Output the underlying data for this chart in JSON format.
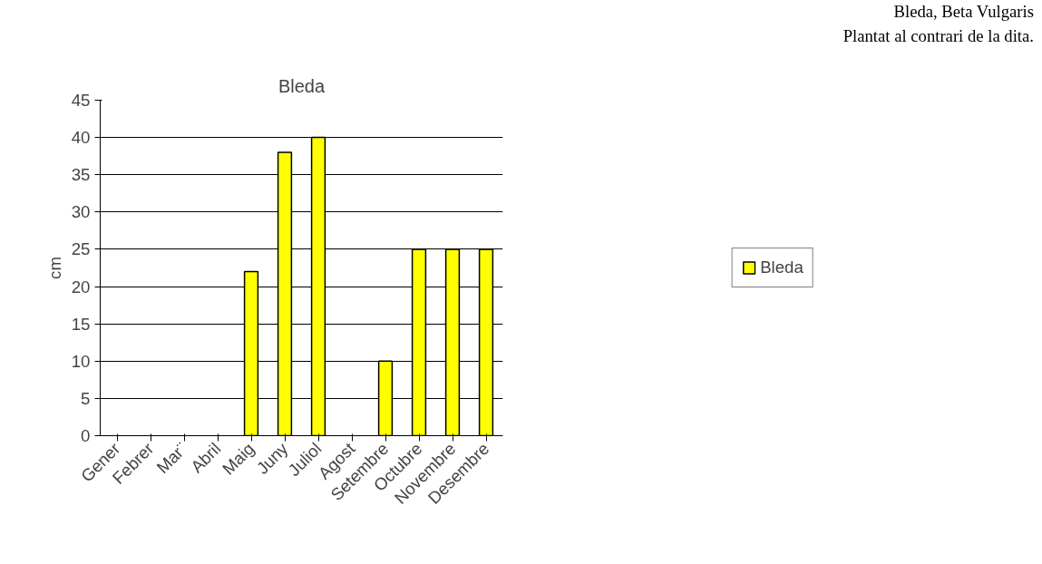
{
  "chart_data": {
    "type": "bar",
    "title": "Bleda",
    "ylabel": "cm",
    "categories": [
      "Gener",
      "Febrer",
      "Mar¨",
      "Abril",
      "Maig",
      "Juny",
      "Juliol",
      "Agost",
      "Setembre",
      "Octubre",
      "Novembre",
      "Desembre"
    ],
    "series": [
      {
        "name": "Bleda",
        "color": "#ffff00",
        "values": [
          null,
          null,
          null,
          null,
          22,
          38,
          40,
          null,
          10,
          25,
          25,
          25
        ]
      }
    ],
    "ylim": [
      0,
      45
    ],
    "yticks": [
      0,
      5,
      10,
      15,
      20,
      25,
      30,
      35,
      40,
      45
    ],
    "grid": "y",
    "legend": "right",
    "annotations": [
      "Bleda, Beta Vulgaris",
      "Plantat al contrari de la dita."
    ]
  }
}
